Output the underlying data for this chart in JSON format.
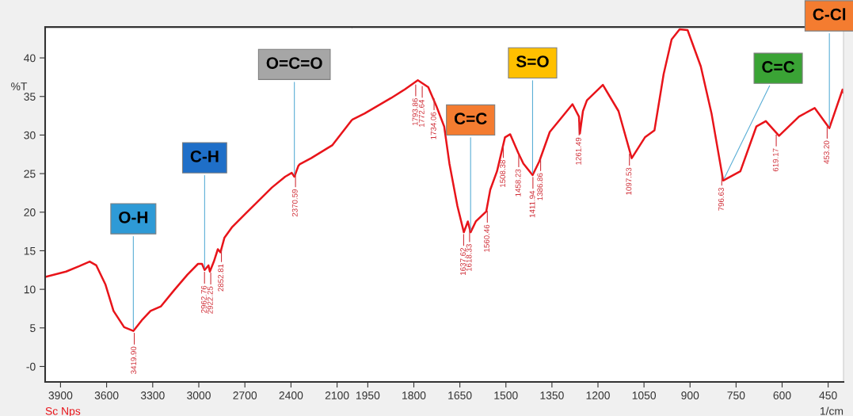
{
  "chart_data": [
    {
      "type": "line",
      "ylabel": "%T",
      "xlim": [
        4000,
        2000
      ],
      "ylim": [
        -2,
        44
      ],
      "xticks": [
        3900,
        3600,
        3300,
        3000,
        2700,
        2400,
        2100
      ],
      "yticks": [
        {
          "value": 0,
          "label": "-0"
        },
        5,
        10,
        15,
        20,
        25,
        30,
        35,
        40
      ],
      "grid": false,
      "marker": "none",
      "line_style": "solid",
      "series": [
        {
          "color": "#e8141a",
          "x": [
            4000,
            3864,
            3778,
            3710,
            3667,
            3607,
            3555,
            3486,
            3426,
            3366,
            3314,
            3246,
            3160,
            3074,
            3005,
            2979,
            2962,
            2937,
            2928,
            2902,
            2876,
            2859,
            2833,
            2782,
            2696,
            2610,
            2524,
            2438,
            2395,
            2378,
            2352,
            2344,
            2269,
            2130,
            2010,
            2000
          ],
          "values": [
            11.6,
            12.3,
            13.0,
            13.6,
            13.1,
            10.6,
            7.2,
            5.1,
            4.6,
            6.1,
            7.2,
            7.8,
            9.9,
            11.9,
            13.3,
            13.3,
            12.5,
            13.1,
            12.3,
            13.6,
            15.2,
            14.8,
            16.7,
            18.1,
            19.8,
            21.5,
            23.2,
            24.6,
            25.1,
            24.6,
            26.0,
            26.2,
            27.0,
            28.7,
            31.8,
            32.0
          ]
        }
      ],
      "annotations": [
        "Sc Nps",
        {
          "text": "3419.90",
          "x": 3419.9,
          "y": 4.6
        },
        {
          "text": "2962.76",
          "x": 2962.76,
          "y": 12.5
        },
        {
          "text": "2922.25",
          "x": 2922.25,
          "y": 12.4
        },
        {
          "text": "2852.81",
          "x": 2852.81,
          "y": 15.3
        },
        {
          "text": "2370.59",
          "x": 2370.59,
          "y": 25.0
        },
        {
          "text": "O-H",
          "x": 3426,
          "y": 4.6
        },
        {
          "text": "C-H",
          "x": 2962,
          "y": 12.5
        },
        {
          "text": "O=C=O",
          "x": 2378,
          "y": 24.6
        }
      ]
    },
    {
      "type": "line",
      "xlabel": "1/cm",
      "xlim": [
        2000,
        400
      ],
      "ylim": [
        -2,
        44
      ],
      "xticks": [
        1950,
        1800,
        1650,
        1500,
        1350,
        1200,
        1050,
        900,
        750,
        600,
        450
      ],
      "tick_labels": "x",
      "grid": false,
      "marker": "none",
      "line_style": "solid",
      "series": [
        {
          "color": "#e8141a",
          "x": [
            2000,
            1960,
            1917,
            1874,
            1830,
            1787,
            1753,
            1727,
            1701,
            1684,
            1658,
            1637,
            1624,
            1615,
            1598,
            1564,
            1551,
            1529,
            1503,
            1486,
            1460,
            1443,
            1413,
            1391,
            1357,
            1322,
            1283,
            1262,
            1259,
            1249,
            1236,
            1184,
            1133,
            1090,
            1047,
            1016,
            986,
            960,
            934,
            908,
            865,
            830,
            792,
            736,
            684,
            653,
            610,
            545,
            494,
            446,
            403,
            400
          ],
          "values": [
            32.0,
            32.8,
            33.8,
            34.8,
            35.9,
            37.1,
            36.2,
            33.8,
            31.1,
            26.3,
            20.8,
            17.4,
            18.8,
            17.4,
            18.8,
            20.1,
            22.9,
            25.3,
            29.7,
            30.1,
            27.7,
            26.3,
            24.8,
            26.6,
            30.4,
            32.1,
            34.0,
            32.4,
            30.2,
            33.1,
            34.5,
            36.5,
            33.1,
            27.0,
            29.7,
            30.6,
            37.9,
            42.4,
            43.7,
            43.6,
            38.9,
            32.8,
            24.1,
            25.3,
            31.1,
            31.8,
            29.9,
            32.4,
            33.5,
            30.9,
            35.9,
            35.5
          ]
        }
      ],
      "annotations": [
        {
          "text": "1793.86",
          "x": 1793.86,
          "y": 36.8
        },
        {
          "text": "1772.64",
          "x": 1772.64,
          "y": 36.6
        },
        {
          "text": "1734.06",
          "x": 1734.06,
          "y": 35.0
        },
        {
          "text": "1637.62",
          "x": 1637.62,
          "y": 17.4
        },
        {
          "text": "1618.33",
          "x": 1618.33,
          "y": 17.9
        },
        {
          "text": "1560.46",
          "x": 1560.46,
          "y": 20.4
        },
        {
          "text": "1508.38",
          "x": 1508.38,
          "y": 28.8
        },
        {
          "text": "1458.23",
          "x": 1458.23,
          "y": 27.6
        },
        {
          "text": "1411.94",
          "x": 1411.94,
          "y": 24.8
        },
        {
          "text": "1386.86",
          "x": 1386.86,
          "y": 27.1
        },
        {
          "text": "1261.49",
          "x": 1261.49,
          "y": 31.7
        },
        {
          "text": "1097.53",
          "x": 1097.53,
          "y": 27.8
        },
        {
          "text": "796.63",
          "x": 796.63,
          "y": 25.2
        },
        {
          "text": "619.17",
          "x": 619.17,
          "y": 30.3
        },
        {
          "text": "453.20",
          "x": 453.2,
          "y": 31.3
        },
        {
          "text": "C=C",
          "x": 1615,
          "y": 17.4
        },
        {
          "text": "S=O",
          "x": 1413,
          "y": 24.8
        },
        {
          "text": "C=C",
          "x": 792,
          "y": 24.1
        },
        {
          "text": "C-Cl",
          "x": 446,
          "y": 30.9
        }
      ]
    }
  ]
}
